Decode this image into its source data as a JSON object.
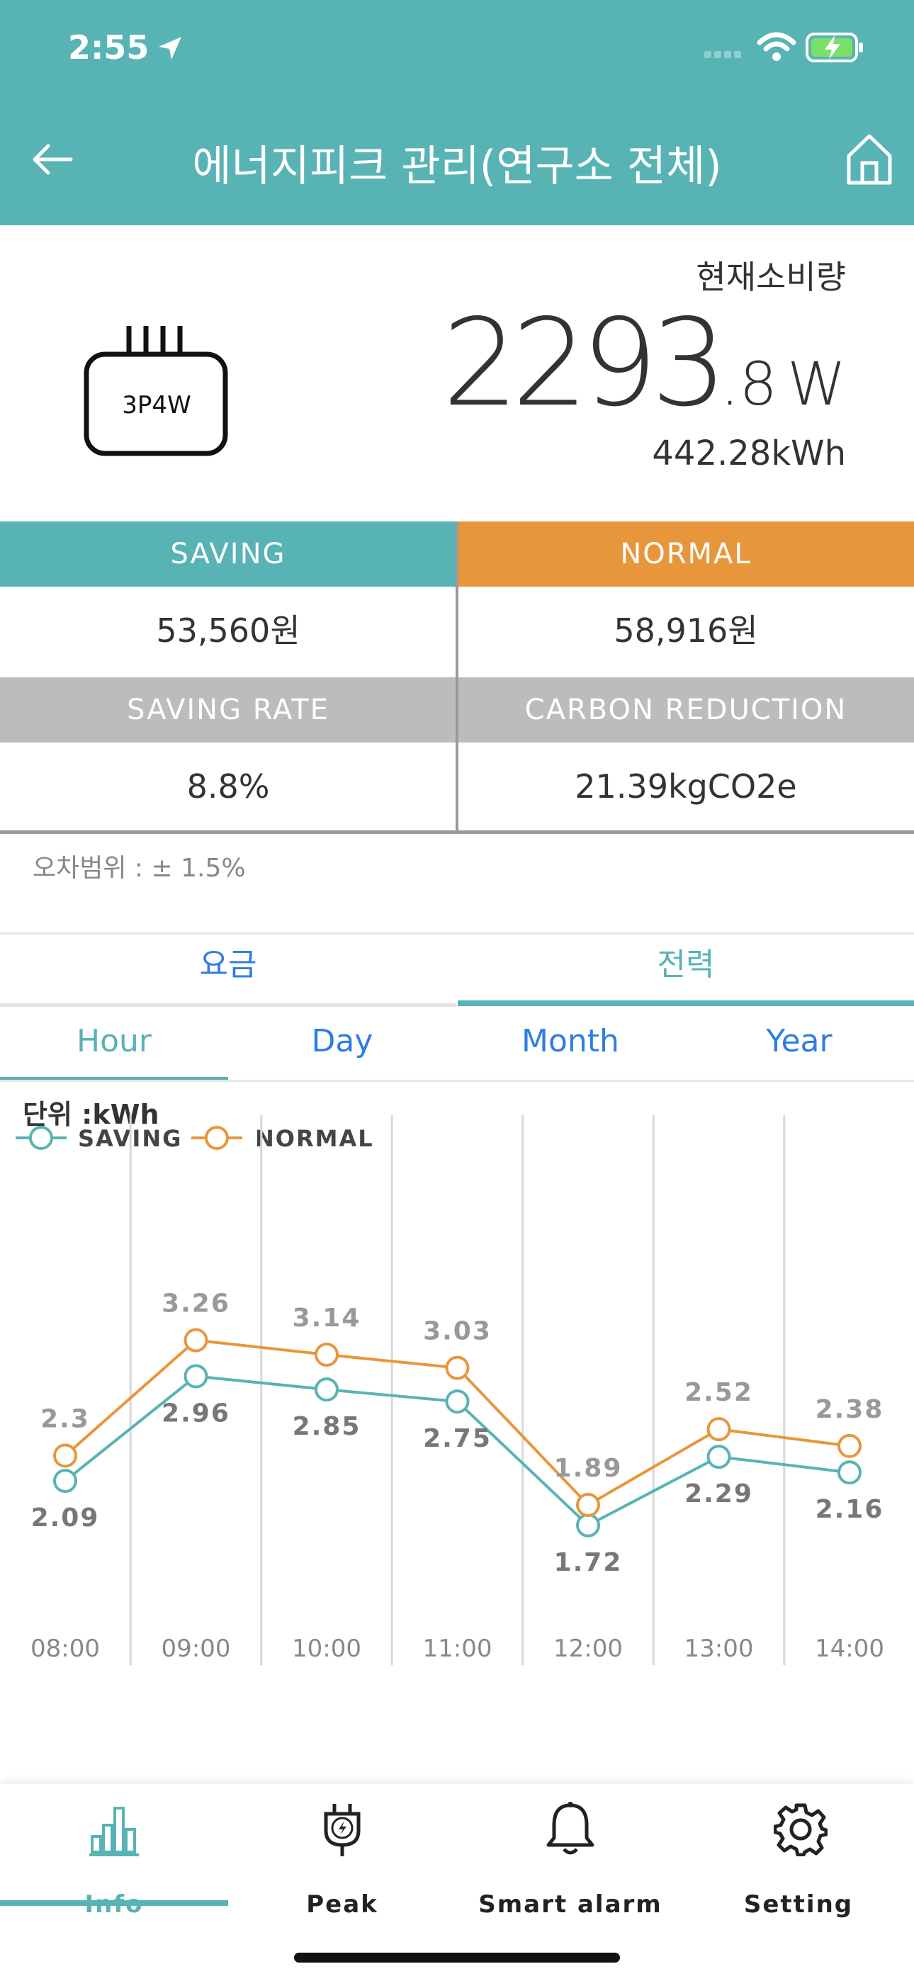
{
  "status_bar": {
    "time": "2:55"
  },
  "header": {
    "title": "에너지피크 관리(연구소 전체)",
    "back_icon": "arrow-left-icon",
    "home_icon": "home-icon",
    "color": "#58b3b4"
  },
  "meter": {
    "label": "3P4W"
  },
  "current": {
    "label": "현재소비량",
    "power_int": "2293",
    "power_dec": ".8",
    "power_unit": "W",
    "energy": "442.28kWh"
  },
  "stats": {
    "saving_label": "SAVING",
    "saving_value": "53,560원",
    "normal_label": "NORMAL",
    "normal_value": "58,916원",
    "rate_label": "SAVING RATE",
    "rate_value": "8.8%",
    "carbon_label": "CARBON REDUCTION",
    "carbon_value": "21.39kgCO2e",
    "colors": {
      "saving": "#58b3b4",
      "normal": "#e8963c",
      "gray": "#bcbcbc"
    }
  },
  "error_range": "오차범위 : ± 1.5%",
  "tabs_primary": [
    {
      "label": "요금",
      "active": false
    },
    {
      "label": "전력",
      "active": true
    }
  ],
  "tabs_period": [
    {
      "label": "Hour",
      "active": true
    },
    {
      "label": "Day",
      "active": false
    },
    {
      "label": "Month",
      "active": false
    },
    {
      "label": "Year",
      "active": false
    }
  ],
  "chart_data": {
    "type": "line",
    "unit_label": "단위 :kWh",
    "categories": [
      "08:00",
      "09:00",
      "10:00",
      "11:00",
      "12:00",
      "13:00",
      "14:00"
    ],
    "series": [
      {
        "name": "SAVING",
        "color": "#58b3b4",
        "values": [
          2.09,
          2.96,
          2.85,
          2.75,
          1.72,
          2.29,
          2.16
        ]
      },
      {
        "name": "NORMAL",
        "color": "#e8963c",
        "values": [
          2.3,
          3.26,
          3.14,
          3.03,
          1.89,
          2.52,
          2.38
        ]
      }
    ],
    "grid": true,
    "legend": "top-left"
  },
  "bottom_nav": [
    {
      "label": "Info",
      "icon": "bar-chart-icon",
      "active": true
    },
    {
      "label": "Peak",
      "icon": "plug-icon",
      "active": false
    },
    {
      "label": "Smart alarm",
      "icon": "bell-icon",
      "active": false
    },
    {
      "label": "Setting",
      "icon": "gear-icon",
      "active": false
    }
  ]
}
